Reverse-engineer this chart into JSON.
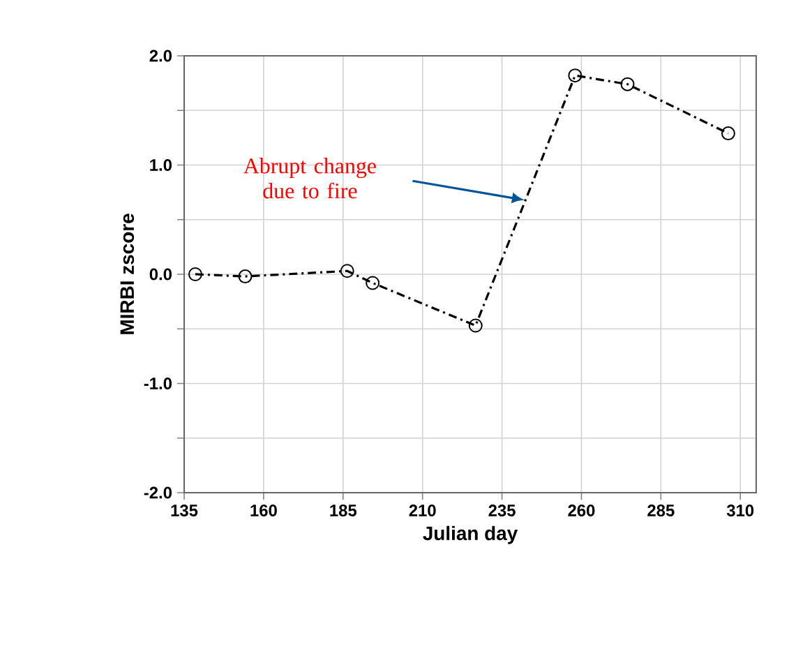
{
  "chart_data": {
    "type": "line",
    "xlabel": "Julian day",
    "ylabel": "MIRBI zscore",
    "x": [
      138.5,
      154.2,
      186.3,
      194.3,
      226.7,
      258.0,
      274.5,
      306.2
    ],
    "series": [
      {
        "color": "#000000",
        "values": [
          0.0,
          -0.02,
          0.03,
          -0.08,
          -0.47,
          1.82,
          1.74,
          1.29
        ]
      }
    ],
    "xlim": [
      135,
      315
    ],
    "xticks": [
      135,
      160,
      185,
      210,
      235,
      260,
      285,
      310
    ],
    "ylim": [
      -2,
      2
    ],
    "yticks": [
      {
        "value": -2,
        "label": "-2.0"
      },
      {
        "value": -1.5,
        "label": null
      },
      {
        "value": -1,
        "label": "-1.0"
      },
      {
        "value": -0.5,
        "label": null
      },
      {
        "value": 0,
        "label": "0.0"
      },
      {
        "value": 0.5,
        "label": null
      },
      {
        "value": 1,
        "label": "1.0"
      },
      {
        "value": 1.5,
        "label": null
      },
      {
        "value": 2,
        "label": "2.0"
      }
    ],
    "annotations": [
      "Abrupt change due to fire"
    ],
    "grid": true,
    "marker": "circle",
    "line_style": "dashed"
  }
}
